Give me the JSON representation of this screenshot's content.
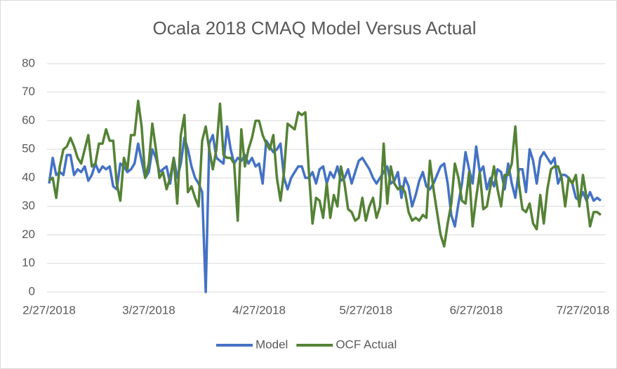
{
  "chart_data": {
    "type": "line",
    "title": "Ocala 2018 CMAQ Model Versus Actual",
    "categories": [
      "2/27/2018",
      null,
      null,
      null,
      null,
      null,
      null,
      null,
      null,
      null,
      null,
      null,
      null,
      null,
      null,
      null,
      null,
      null,
      null,
      null,
      null,
      null,
      null,
      null,
      null,
      null,
      null,
      null,
      "3/27/2018",
      null,
      null,
      null,
      null,
      null,
      null,
      null,
      null,
      null,
      null,
      null,
      null,
      null,
      null,
      null,
      null,
      null,
      null,
      null,
      null,
      null,
      null,
      null,
      null,
      null,
      null,
      null,
      null,
      null,
      null,
      "4/27/2018",
      null,
      null,
      null,
      null,
      null,
      null,
      null,
      null,
      null,
      null,
      null,
      null,
      null,
      null,
      null,
      null,
      null,
      null,
      null,
      null,
      null,
      null,
      null,
      null,
      null,
      null,
      null,
      null,
      null,
      "5/27/2018",
      null,
      null,
      null,
      null,
      null,
      null,
      null,
      null,
      null,
      null,
      null,
      null,
      null,
      null,
      null,
      null,
      null,
      null,
      null,
      null,
      null,
      null,
      null,
      null,
      null,
      null,
      null,
      null,
      null,
      null,
      "6/27/2018",
      null,
      null,
      null,
      null,
      null,
      null,
      null,
      null,
      null,
      null,
      null,
      null,
      null,
      null,
      null,
      null,
      null,
      null,
      null,
      null,
      null,
      null,
      null,
      null,
      null,
      null,
      null,
      null,
      null,
      "7/27/2018",
      null,
      null,
      null,
      null,
      null
    ],
    "series": [
      {
        "name": "Model",
        "color": "#4472c4",
        "values": [
          38,
          47,
          41,
          42,
          41,
          48,
          48,
          41,
          43,
          42,
          44,
          39,
          41,
          45,
          42,
          44,
          43,
          44,
          37,
          36,
          45,
          44,
          42,
          43,
          45,
          52,
          46,
          40,
          42,
          50,
          47,
          42,
          43,
          44,
          38,
          47,
          40,
          45,
          54,
          50,
          44,
          40,
          38,
          35,
          0,
          52,
          55,
          47,
          46,
          45,
          58,
          50,
          45,
          47,
          46,
          48,
          45,
          47,
          44,
          45,
          38,
          53,
          51,
          49,
          50,
          52,
          40,
          36,
          40,
          42,
          44,
          44,
          40,
          40,
          42,
          38,
          43,
          44,
          38,
          42,
          40,
          44,
          39,
          40,
          43,
          38,
          42,
          46,
          47,
          45,
          43,
          40,
          38,
          40,
          42,
          44,
          38,
          39,
          42,
          33,
          40,
          37,
          30,
          34,
          39,
          42,
          37,
          36,
          38,
          41,
          44,
          45,
          38,
          27,
          23,
          31,
          38,
          49,
          43,
          38,
          51,
          42,
          44,
          36,
          40,
          37,
          43,
          42,
          36,
          45,
          38,
          33,
          43,
          43,
          35,
          50,
          46,
          38,
          47,
          49,
          47,
          45,
          47,
          38,
          41,
          41,
          40,
          38,
          33,
          32,
          35,
          32,
          35,
          32,
          33,
          32
        ]
      },
      {
        "name": "OCF Actual",
        "color": "#548235",
        "values": [
          39,
          40,
          33,
          44,
          50,
          51,
          54,
          51,
          47,
          45,
          50,
          55,
          44,
          45,
          52,
          52,
          57,
          53,
          53,
          38,
          32,
          47,
          43,
          55,
          55,
          67,
          58,
          40,
          45,
          59,
          50,
          40,
          42,
          36,
          40,
          47,
          31,
          55,
          62,
          35,
          37,
          33,
          30,
          53,
          58,
          50,
          43,
          50,
          66,
          48,
          47,
          47,
          45,
          25,
          57,
          44,
          50,
          54,
          60,
          60,
          55,
          52,
          50,
          55,
          40,
          32,
          42,
          59,
          58,
          57,
          63,
          62,
          63,
          42,
          24,
          33,
          32,
          26,
          38,
          26,
          34,
          30,
          44,
          38,
          29,
          28,
          25,
          26,
          33,
          25,
          30,
          33,
          26,
          30,
          52,
          31,
          44,
          38,
          36,
          37,
          35,
          28,
          25,
          26,
          25,
          27,
          26,
          46,
          36,
          28,
          20,
          16,
          24,
          31,
          45,
          40,
          32,
          31,
          42,
          23,
          33,
          42,
          29,
          30,
          37,
          44,
          36,
          30,
          41,
          41,
          45,
          58,
          38,
          29,
          28,
          31,
          24,
          22,
          34,
          24,
          36,
          43,
          44,
          44,
          40,
          30,
          40,
          38,
          41,
          30,
          41,
          33,
          23,
          28,
          28,
          27
        ]
      }
    ],
    "ylim": [
      0,
      80
    ],
    "yticks": [
      0,
      10,
      20,
      30,
      40,
      50,
      60,
      70,
      80
    ],
    "grid": true,
    "legend": "bottom"
  }
}
